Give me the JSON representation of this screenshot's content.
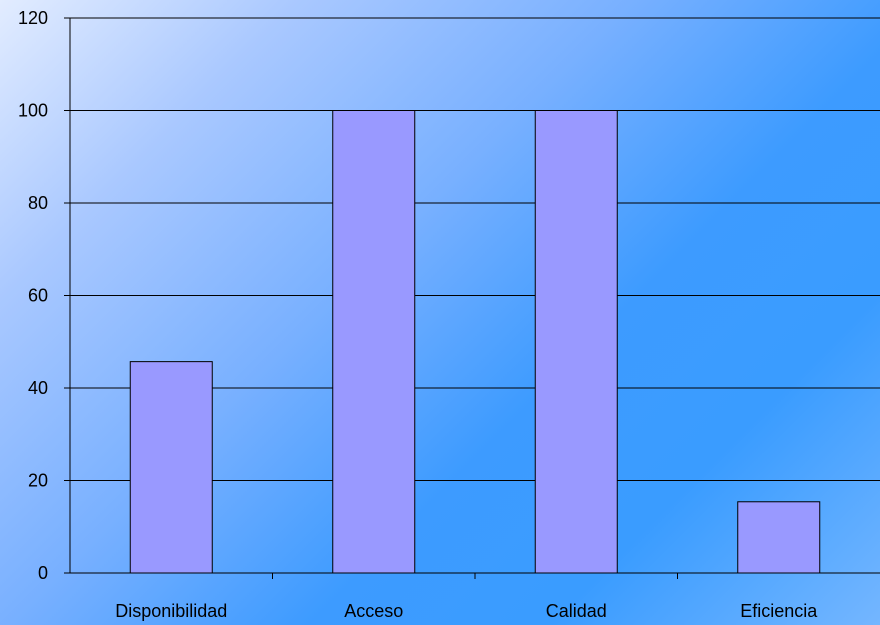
{
  "chart_data": {
    "type": "bar",
    "title": "",
    "xlabel": "",
    "ylabel": "",
    "categories": [
      "Disponibilidad",
      "Acceso",
      "Calidad",
      "Eficiencia"
    ],
    "values": [
      45.7,
      100,
      100,
      15.4
    ],
    "ylim": [
      0,
      120
    ],
    "yticks": [
      0,
      20,
      40,
      60,
      80,
      100,
      120
    ],
    "grid": true,
    "legend": "none",
    "colors": {
      "bar_fill": "#9999ff",
      "bar_stroke": "#000000",
      "gridline": "#000000",
      "axis": "#000000"
    }
  }
}
